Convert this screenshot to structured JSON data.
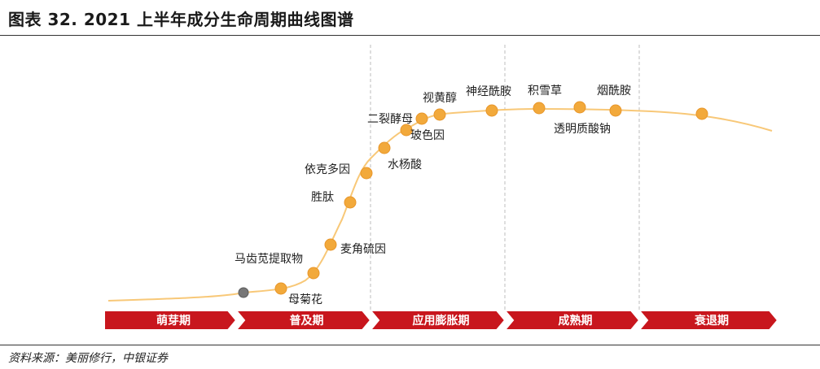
{
  "title": "图表 32. 2021 上半年成分生命周期曲线图谱",
  "source": "资料来源：美丽修行，中银证券",
  "colors": {
    "curve": "#F8C878",
    "point": "#F2A93B",
    "point_stroke": "#E8962A",
    "point_start": "#777777",
    "stage_band": "#C8161D",
    "divider": "#BDBDBD"
  },
  "stages": [
    "萌芽期",
    "普及期",
    "应用膨胀期",
    "成熟期",
    "衰退期"
  ],
  "ingredients": [
    {
      "label": "",
      "stage": "萌芽期",
      "start": true
    },
    {
      "label": "母菊花",
      "stage": "普及期"
    },
    {
      "label": "马齿苋提取物",
      "stage": "普及期"
    },
    {
      "label": "麦角硫因",
      "stage": "普及期"
    },
    {
      "label": "胜肽",
      "stage": "普及期"
    },
    {
      "label": "依克多因",
      "stage": "普及期"
    },
    {
      "label": "水杨酸",
      "stage": "应用膨胀期"
    },
    {
      "label": "二裂酵母",
      "stage": "应用膨胀期"
    },
    {
      "label": "玻色因",
      "stage": "应用膨胀期"
    },
    {
      "label": "视黄醇",
      "stage": "应用膨胀期"
    },
    {
      "label": "神经酰胺",
      "stage": "应用膨胀期"
    },
    {
      "label": "积雪草",
      "stage": "成熟期"
    },
    {
      "label": "透明质酸钠",
      "stage": "成熟期"
    },
    {
      "label": "烟酰胺",
      "stage": "成熟期"
    },
    {
      "label": "",
      "stage": "衰退期"
    }
  ]
}
